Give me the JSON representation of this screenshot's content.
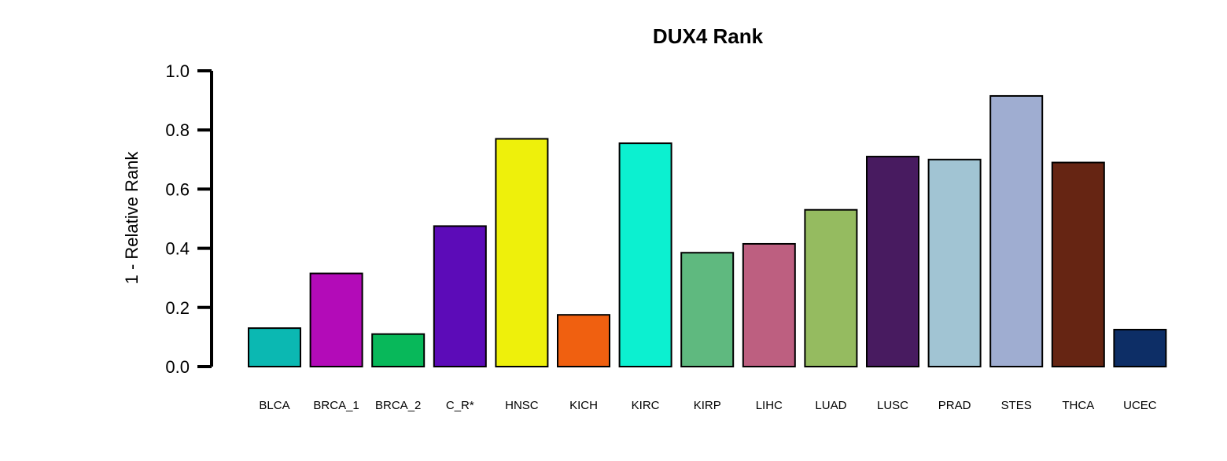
{
  "chart_data": {
    "type": "bar",
    "title": "DUX4 Rank",
    "xlabel": "",
    "ylabel": "1 - Relative Rank",
    "ylim": [
      0,
      1.0
    ],
    "yticks": [
      "0.0",
      "0.2",
      "0.4",
      "0.6",
      "0.8",
      "1.0"
    ],
    "grid": false,
    "categories": [
      "BLCA",
      "BRCA_1",
      "BRCA_2",
      "C_R*",
      "HNSC",
      "KICH",
      "KIRC",
      "KIRP",
      "LIHC",
      "LUAD",
      "LUSC",
      "PRAD",
      "STES",
      "THCA",
      "UCEC"
    ],
    "values": [
      0.13,
      0.315,
      0.11,
      0.475,
      0.77,
      0.175,
      0.755,
      0.385,
      0.415,
      0.53,
      0.71,
      0.7,
      0.915,
      0.69,
      0.125
    ],
    "colors": [
      "#0bb8b2",
      "#b30bb8",
      "#08b85a",
      "#5c0bb8",
      "#eef00b",
      "#f06010",
      "#0cf0d0",
      "#5fb97f",
      "#bd5f80",
      "#95bb60",
      "#481b60",
      "#a1c4d3",
      "#9fadd1",
      "#662513",
      "#0d2e66"
    ],
    "bar_edge_color": "#000000",
    "axis_color": "#000000"
  }
}
